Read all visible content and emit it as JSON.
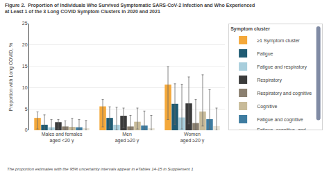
{
  "chart_data": {
    "type": "bar",
    "title": "Figure 2.  Proportion of Individuals Who Survived Symptomatic SARS-CoV-2 Infection and Who Experienced\nat Least 1 of the 3 Long COVID Symptom Clusters in 2020 and 2021",
    "ylabel": "Proportion with Long COVID, %",
    "footnote": "The proportion estimates with the 95% uncertainty intervals appear in eTables 14-15 in Supplement 1",
    "legend_title": "Symptom cluster",
    "categories": [
      "Males and females\naged <20 y",
      "Men\naged ≥20 y",
      "Women\naged ≥20 y"
    ],
    "series": [
      {
        "name": "≥1 Symptom cluster",
        "color": "#F4A83A",
        "values": [
          2.9,
          5.6,
          10.7
        ],
        "error_lo": [
          0.3,
          0.8,
          2.5
        ],
        "error_hi": [
          4.3,
          7.2,
          14.9
        ]
      },
      {
        "name": "Fatigue",
        "color": "#1F5B73",
        "values": [
          1.3,
          2.9,
          6.2
        ],
        "error_lo": [
          0.1,
          0.5,
          1.4
        ],
        "error_hi": [
          3.6,
          5.5,
          10.9
        ]
      },
      {
        "name": "Fatigue and respiratory",
        "color": "#A8CEDC",
        "values": [
          0.7,
          1.3,
          3.0
        ],
        "error_lo": [
          0.0,
          0.1,
          0.3
        ],
        "error_hi": [
          2.5,
          5.4,
          10.8
        ]
      },
      {
        "name": "Respiratory",
        "color": "#3B3B3B",
        "values": [
          1.9,
          3.4,
          6.3
        ],
        "error_lo": [
          0.3,
          0.6,
          1.5
        ],
        "error_hi": [
          2.5,
          5.2,
          12.5
        ]
      },
      {
        "name": "Respiratory and cognitive",
        "color": "#8B8070",
        "values": [
          0.9,
          0.9,
          1.7
        ],
        "error_lo": [
          0.0,
          0.0,
          0.1
        ],
        "error_hi": [
          2.2,
          3.5,
          7.2
        ]
      },
      {
        "name": "Cognitive",
        "color": "#C8BB99",
        "values": [
          0.8,
          2.0,
          4.4
        ],
        "error_lo": [
          0.0,
          0.3,
          1.0
        ],
        "error_hi": [
          2.8,
          5.2,
          13.0
        ]
      },
      {
        "name": "Fatigue and cognitive",
        "color": "#3E7CA0",
        "values": [
          0.7,
          1.1,
          2.6
        ],
        "error_lo": [
          0.0,
          0.0,
          0.3
        ],
        "error_hi": [
          2.5,
          4.5,
          9.5
        ]
      },
      {
        "name": "Fatigue, cognitive, and\nrespiratory",
        "color": "#E8E4D8",
        "values": [
          0.5,
          0.5,
          1.0
        ],
        "error_lo": [
          0.0,
          0.0,
          0.0
        ],
        "error_hi": [
          2.3,
          3.5,
          5.2
        ]
      }
    ],
    "ylim": [
      0,
      25
    ],
    "yticks": [
      0,
      5,
      10,
      15,
      20,
      25
    ],
    "grid": true,
    "legend": "right"
  }
}
